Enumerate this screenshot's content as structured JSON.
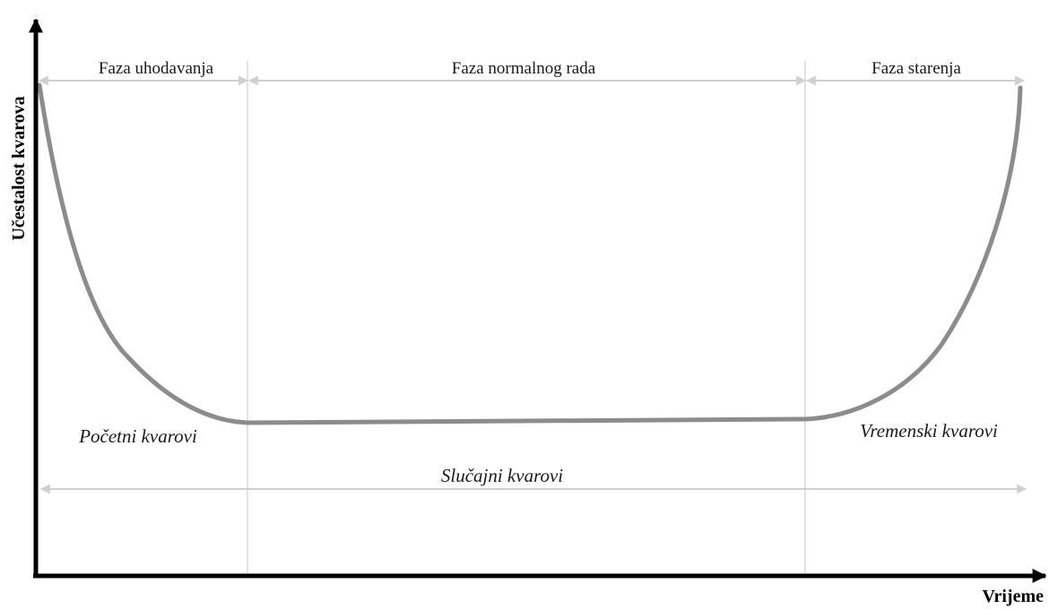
{
  "axes": {
    "y_label": "Učestalost kvarova",
    "x_label": "Vrijeme"
  },
  "phases": [
    {
      "label": "Faza uhodavanja"
    },
    {
      "label": "Faza normalnog rada"
    },
    {
      "label": "Faza starenja"
    }
  ],
  "failure_types": {
    "early": "Početni kvarovi",
    "wearout": "Vremenski kvarovi",
    "random": "Slučajni kvarovi"
  },
  "colors": {
    "axis": "#000000",
    "curve": "#8c8c8c",
    "guide": "#d9d9d9",
    "arrow": "#d0d0d0"
  }
}
